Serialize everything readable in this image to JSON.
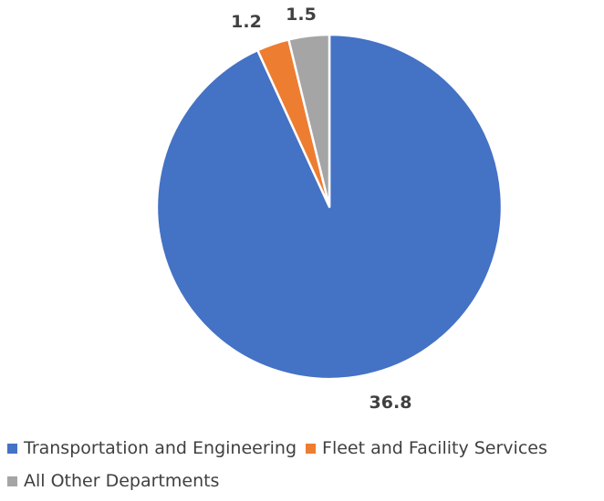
{
  "chart_data": {
    "type": "pie",
    "categories": [
      "Transportation and Engineering",
      "Fleet and Facility Services",
      "All Other Departments"
    ],
    "values": [
      36.8,
      1.2,
      1.5
    ],
    "value_labels": [
      "36.8",
      "1.2",
      "1.5"
    ],
    "colors": [
      "#4472c4",
      "#ed7d31",
      "#a5a5a5"
    ],
    "title": "",
    "start_angle_deg": 0,
    "direction": "clockwise",
    "legend_position": "bottom"
  }
}
